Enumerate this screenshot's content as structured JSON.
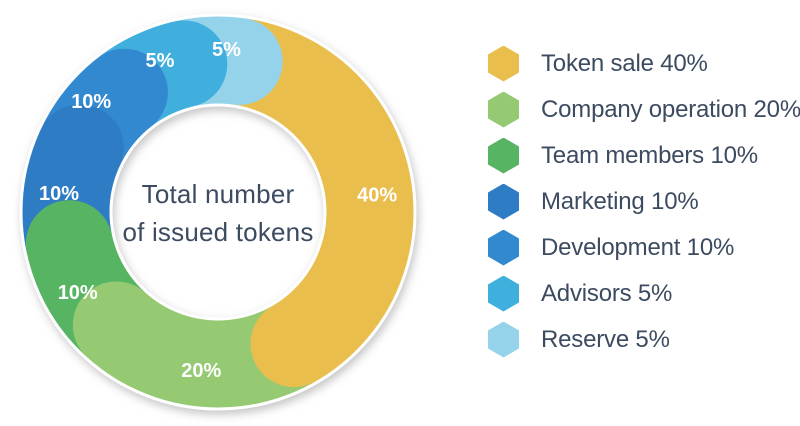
{
  "background_color": "#FFFFFF",
  "chart_data": {
    "type": "pie",
    "subtype": "donut",
    "title": "Total number of issued tokens",
    "center_label_lines": [
      "Total number",
      "of issued tokens"
    ],
    "legend_position": "right",
    "start_angle_deg": 8,
    "text_color": "#3C4B60",
    "slice_label_color": "#FFFFFF",
    "segments": [
      {
        "label": "Token sale",
        "value": 40,
        "percent_label": "40%",
        "legend_label": "Token sale 40%",
        "color": "#E9BE4D",
        "display_span_deg": 142
      },
      {
        "label": "Company operation",
        "value": 20,
        "percent_label": "20%",
        "legend_label": "Company operation 20%",
        "color": "#95C972",
        "display_span_deg": 72
      },
      {
        "label": "Team members",
        "value": 10,
        "percent_label": "10%",
        "legend_label": "Team members 10%",
        "color": "#56B462",
        "display_span_deg": 36
      },
      {
        "label": "Marketing",
        "value": 10,
        "percent_label": "10%",
        "legend_label": "Marketing 10%",
        "color": "#2E7CC4",
        "display_span_deg": 37
      },
      {
        "label": "Development",
        "value": 10,
        "percent_label": "10%",
        "legend_label": "Development 10%",
        "color": "#3189CF",
        "display_span_deg": 27
      },
      {
        "label": "Advisors",
        "value": 5,
        "percent_label": "5%",
        "legend_label": "Advisors 5%",
        "color": "#3FAFDE",
        "display_span_deg": 25
      },
      {
        "label": "Reserve",
        "value": 5,
        "percent_label": "5%",
        "legend_label": "Reserve 5%",
        "color": "#95D3EA",
        "display_span_deg": 21
      }
    ]
  }
}
